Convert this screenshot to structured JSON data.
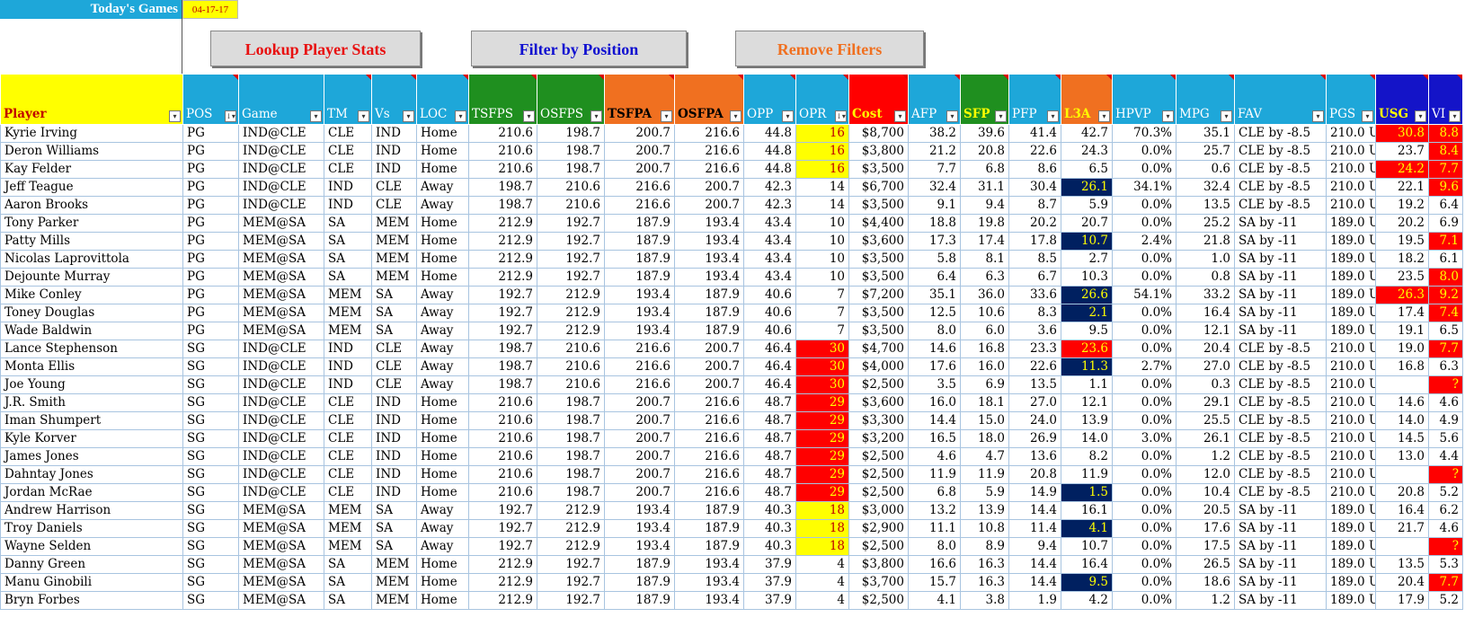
{
  "header": {
    "title": "Today's Games",
    "date": "04-17-17"
  },
  "buttons": {
    "lookup": "Lookup Player Stats",
    "filter": "Filter by Position",
    "remove": "Remove Filters"
  },
  "colors": {
    "title_bg": "#1ea7d9",
    "header_blue": "#1ea7d9",
    "green": "#1f8f1f",
    "orange": "#f07020",
    "red": "#ff0000",
    "navy": "#002060",
    "yellow": "#ffff00"
  },
  "columns": [
    {
      "key": "player",
      "label": "Player",
      "bg": "#ffff00",
      "fg": "#c00000",
      "width": 203,
      "align": "p"
    },
    {
      "key": "pos",
      "label": "POS",
      "bg": "#1ea7d9",
      "fg": "#ffffff",
      "width": 62,
      "align": "p",
      "sorted": true
    },
    {
      "key": "game",
      "label": "Game",
      "bg": "#1ea7d9",
      "fg": "#ffffff",
      "width": 95,
      "align": "p"
    },
    {
      "key": "tm",
      "label": "TM",
      "bg": "#1ea7d9",
      "fg": "#ffffff",
      "width": 53,
      "align": "p"
    },
    {
      "key": "vs",
      "label": "Vs",
      "bg": "#1ea7d9",
      "fg": "#ffffff",
      "width": 50,
      "align": "p"
    },
    {
      "key": "loc",
      "label": "LOC",
      "bg": "#1ea7d9",
      "fg": "#ffffff",
      "width": 58,
      "align": "p"
    },
    {
      "key": "tsfps",
      "label": "TSFPS",
      "bg": "#1f8f1f",
      "fg": "#ffffff",
      "width": 76,
      "align": "n"
    },
    {
      "key": "osfps",
      "label": "OSFPS",
      "bg": "#1f8f1f",
      "fg": "#ffffff",
      "width": 75,
      "align": "n"
    },
    {
      "key": "tsfpa",
      "label": "TSFPA",
      "bg": "#f07020",
      "fg": "#000000",
      "width": 78,
      "align": "n"
    },
    {
      "key": "osfpa",
      "label": "OSFPA",
      "bg": "#f07020",
      "fg": "#000000",
      "width": 77,
      "align": "n"
    },
    {
      "key": "opp",
      "label": "OPP",
      "bg": "#1ea7d9",
      "fg": "#ffffff",
      "width": 58,
      "align": "n"
    },
    {
      "key": "opr",
      "label": "OPR",
      "bg": "#1ea7d9",
      "fg": "#ffffff",
      "width": 59,
      "align": "n",
      "sorted": true
    },
    {
      "key": "cost",
      "label": "Cost",
      "bg": "#ff0000",
      "fg": "#ffff00",
      "width": 66,
      "align": "n"
    },
    {
      "key": "afp",
      "label": "AFP",
      "bg": "#1ea7d9",
      "fg": "#ffffff",
      "width": 58,
      "align": "n"
    },
    {
      "key": "sfp",
      "label": "SFP",
      "bg": "#1f8f1f",
      "fg": "#ffff00",
      "width": 54,
      "align": "n"
    },
    {
      "key": "pfp",
      "label": "PFP",
      "bg": "#1ea7d9",
      "fg": "#ffffff",
      "width": 58,
      "align": "n"
    },
    {
      "key": "l3a",
      "label": "L3A",
      "bg": "#f07020",
      "fg": "#ffff00",
      "width": 57,
      "align": "n"
    },
    {
      "key": "hpvp",
      "label": "HPVP",
      "bg": "#1ea7d9",
      "fg": "#ffffff",
      "width": 71,
      "align": "n"
    },
    {
      "key": "mpg",
      "label": "MPG",
      "bg": "#1ea7d9",
      "fg": "#ffffff",
      "width": 65,
      "align": "n"
    },
    {
      "key": "fav",
      "label": "FAV",
      "bg": "#1ea7d9",
      "fg": "#ffffff",
      "width": 102,
      "align": "p"
    },
    {
      "key": "pgs",
      "label": "PGS",
      "bg": "#1ea7d9",
      "fg": "#ffffff",
      "width": 55,
      "align": "p"
    },
    {
      "key": "usg",
      "label": "USG",
      "bg": "#1414c8",
      "fg": "#ffff00",
      "width": 59,
      "align": "n"
    },
    {
      "key": "vi",
      "label": "VI",
      "bg": "#1414c8",
      "fg": "#ffffff",
      "width": 38,
      "align": "n"
    }
  ],
  "rows": [
    [
      "Kyrie Irving",
      "PG",
      "IND@CLE",
      "CLE",
      "IND",
      "Home",
      "210.6",
      "198.7",
      "200.7",
      "216.6",
      "44.8",
      "16",
      "$8,700",
      "38.2",
      "39.6",
      "41.4",
      "42.7",
      "70.3%",
      "35.1",
      "CLE by -8.5",
      "210.0 U",
      "30.8",
      "8.8"
    ],
    [
      "Deron Williams",
      "PG",
      "IND@CLE",
      "CLE",
      "IND",
      "Home",
      "210.6",
      "198.7",
      "200.7",
      "216.6",
      "44.8",
      "16",
      "$3,800",
      "21.2",
      "20.8",
      "22.6",
      "24.3",
      "0.0%",
      "25.7",
      "CLE by -8.5",
      "210.0 U",
      "23.7",
      "8.4"
    ],
    [
      "Kay Felder",
      "PG",
      "IND@CLE",
      "CLE",
      "IND",
      "Home",
      "210.6",
      "198.7",
      "200.7",
      "216.6",
      "44.8",
      "16",
      "$3,500",
      "7.7",
      "6.8",
      "8.6",
      "6.5",
      "0.0%",
      "0.6",
      "CLE by -8.5",
      "210.0 U",
      "24.2",
      "7.7"
    ],
    [
      "Jeff Teague",
      "PG",
      "IND@CLE",
      "IND",
      "CLE",
      "Away",
      "198.7",
      "210.6",
      "216.6",
      "200.7",
      "42.3",
      "14",
      "$6,700",
      "32.4",
      "31.1",
      "30.4",
      "26.1",
      "34.1%",
      "32.4",
      "CLE by -8.5",
      "210.0 U",
      "22.1",
      "9.6"
    ],
    [
      "Aaron Brooks",
      "PG",
      "IND@CLE",
      "IND",
      "CLE",
      "Away",
      "198.7",
      "210.6",
      "216.6",
      "200.7",
      "42.3",
      "14",
      "$3,500",
      "9.1",
      "9.4",
      "8.7",
      "5.9",
      "0.0%",
      "13.5",
      "CLE by -8.5",
      "210.0 U",
      "19.2",
      "6.4"
    ],
    [
      "Tony Parker",
      "PG",
      "MEM@SA",
      "SA",
      "MEM",
      "Home",
      "212.9",
      "192.7",
      "187.9",
      "193.4",
      "43.4",
      "10",
      "$4,400",
      "18.8",
      "19.8",
      "20.2",
      "20.7",
      "0.0%",
      "25.2",
      "SA by -11",
      "189.0 U",
      "20.2",
      "6.9"
    ],
    [
      "Patty Mills",
      "PG",
      "MEM@SA",
      "SA",
      "MEM",
      "Home",
      "212.9",
      "192.7",
      "187.9",
      "193.4",
      "43.4",
      "10",
      "$3,600",
      "17.3",
      "17.4",
      "17.8",
      "10.7",
      "2.4%",
      "21.8",
      "SA by -11",
      "189.0 U",
      "19.5",
      "7.1"
    ],
    [
      "Nicolas Laprovittola",
      "PG",
      "MEM@SA",
      "SA",
      "MEM",
      "Home",
      "212.9",
      "192.7",
      "187.9",
      "193.4",
      "43.4",
      "10",
      "$3,500",
      "5.8",
      "8.1",
      "8.5",
      "2.7",
      "0.0%",
      "1.0",
      "SA by -11",
      "189.0 U",
      "18.2",
      "6.1"
    ],
    [
      "Dejounte Murray",
      "PG",
      "MEM@SA",
      "SA",
      "MEM",
      "Home",
      "212.9",
      "192.7",
      "187.9",
      "193.4",
      "43.4",
      "10",
      "$3,500",
      "6.4",
      "6.3",
      "6.7",
      "10.3",
      "0.0%",
      "0.8",
      "SA by -11",
      "189.0 U",
      "23.5",
      "8.0"
    ],
    [
      "Mike Conley",
      "PG",
      "MEM@SA",
      "MEM",
      "SA",
      "Away",
      "192.7",
      "212.9",
      "193.4",
      "187.9",
      "40.6",
      "7",
      "$7,200",
      "35.1",
      "36.0",
      "33.6",
      "26.6",
      "54.1%",
      "33.2",
      "SA by -11",
      "189.0 U",
      "26.3",
      "9.2"
    ],
    [
      "Toney Douglas",
      "PG",
      "MEM@SA",
      "MEM",
      "SA",
      "Away",
      "192.7",
      "212.9",
      "193.4",
      "187.9",
      "40.6",
      "7",
      "$3,500",
      "12.5",
      "10.6",
      "8.3",
      "2.1",
      "0.0%",
      "16.4",
      "SA by -11",
      "189.0 U",
      "17.4",
      "7.4"
    ],
    [
      "Wade Baldwin",
      "PG",
      "MEM@SA",
      "MEM",
      "SA",
      "Away",
      "192.7",
      "212.9",
      "193.4",
      "187.9",
      "40.6",
      "7",
      "$3,500",
      "8.0",
      "6.0",
      "3.6",
      "9.5",
      "0.0%",
      "12.1",
      "SA by -11",
      "189.0 U",
      "19.1",
      "6.5"
    ],
    [
      "Lance Stephenson",
      "SG",
      "IND@CLE",
      "IND",
      "CLE",
      "Away",
      "198.7",
      "210.6",
      "216.6",
      "200.7",
      "46.4",
      "30",
      "$4,700",
      "14.6",
      "16.8",
      "23.3",
      "23.6",
      "0.0%",
      "20.4",
      "CLE by -8.5",
      "210.0 U",
      "19.0",
      "7.7"
    ],
    [
      "Monta Ellis",
      "SG",
      "IND@CLE",
      "IND",
      "CLE",
      "Away",
      "198.7",
      "210.6",
      "216.6",
      "200.7",
      "46.4",
      "30",
      "$4,000",
      "17.6",
      "16.0",
      "22.6",
      "11.3",
      "2.7%",
      "27.0",
      "CLE by -8.5",
      "210.0 U",
      "16.8",
      "6.3"
    ],
    [
      "Joe Young",
      "SG",
      "IND@CLE",
      "IND",
      "CLE",
      "Away",
      "198.7",
      "210.6",
      "216.6",
      "200.7",
      "46.4",
      "30",
      "$2,500",
      "3.5",
      "6.9",
      "13.5",
      "1.1",
      "0.0%",
      "0.3",
      "CLE by -8.5",
      "210.0 U ?",
      "",
      "?"
    ],
    [
      "J.R. Smith",
      "SG",
      "IND@CLE",
      "CLE",
      "IND",
      "Home",
      "210.6",
      "198.7",
      "200.7",
      "216.6",
      "48.7",
      "29",
      "$3,600",
      "16.0",
      "18.1",
      "27.0",
      "12.1",
      "0.0%",
      "29.1",
      "CLE by -8.5",
      "210.0 U",
      "14.6",
      "4.6"
    ],
    [
      "Iman Shumpert",
      "SG",
      "IND@CLE",
      "CLE",
      "IND",
      "Home",
      "210.6",
      "198.7",
      "200.7",
      "216.6",
      "48.7",
      "29",
      "$3,300",
      "14.4",
      "15.0",
      "24.0",
      "13.9",
      "0.0%",
      "25.5",
      "CLE by -8.5",
      "210.0 U",
      "14.0",
      "4.9"
    ],
    [
      "Kyle Korver",
      "SG",
      "IND@CLE",
      "CLE",
      "IND",
      "Home",
      "210.6",
      "198.7",
      "200.7",
      "216.6",
      "48.7",
      "29",
      "$3,200",
      "16.5",
      "18.0",
      "26.9",
      "14.0",
      "3.0%",
      "26.1",
      "CLE by -8.5",
      "210.0 U",
      "14.5",
      "5.6"
    ],
    [
      "James Jones",
      "SG",
      "IND@CLE",
      "CLE",
      "IND",
      "Home",
      "210.6",
      "198.7",
      "200.7",
      "216.6",
      "48.7",
      "29",
      "$2,500",
      "4.6",
      "4.7",
      "13.6",
      "8.2",
      "0.0%",
      "1.2",
      "CLE by -8.5",
      "210.0 U",
      "13.0",
      "4.4"
    ],
    [
      "Dahntay Jones",
      "SG",
      "IND@CLE",
      "CLE",
      "IND",
      "Home",
      "210.6",
      "198.7",
      "200.7",
      "216.6",
      "48.7",
      "29",
      "$2,500",
      "11.9",
      "11.9",
      "20.8",
      "11.9",
      "0.0%",
      "12.0",
      "CLE by -8.5",
      "210.0 U ?",
      "",
      "?"
    ],
    [
      "Jordan McRae",
      "SG",
      "IND@CLE",
      "CLE",
      "IND",
      "Home",
      "210.6",
      "198.7",
      "200.7",
      "216.6",
      "48.7",
      "29",
      "$2,500",
      "6.8",
      "5.9",
      "14.9",
      "1.5",
      "0.0%",
      "10.4",
      "CLE by -8.5",
      "210.0 U",
      "20.8",
      "5.2"
    ],
    [
      "Andrew Harrison",
      "SG",
      "MEM@SA",
      "MEM",
      "SA",
      "Away",
      "192.7",
      "212.9",
      "193.4",
      "187.9",
      "40.3",
      "18",
      "$3,000",
      "13.2",
      "13.9",
      "14.4",
      "16.1",
      "0.0%",
      "20.5",
      "SA by -11",
      "189.0 U",
      "16.4",
      "6.2"
    ],
    [
      "Troy Daniels",
      "SG",
      "MEM@SA",
      "MEM",
      "SA",
      "Away",
      "192.7",
      "212.9",
      "193.4",
      "187.9",
      "40.3",
      "18",
      "$2,900",
      "11.1",
      "10.8",
      "11.4",
      "4.1",
      "0.0%",
      "17.6",
      "SA by -11",
      "189.0 U",
      "21.7",
      "4.6"
    ],
    [
      "Wayne Selden",
      "SG",
      "MEM@SA",
      "MEM",
      "SA",
      "Away",
      "192.7",
      "212.9",
      "193.4",
      "187.9",
      "40.3",
      "18",
      "$2,500",
      "8.0",
      "8.9",
      "9.4",
      "10.7",
      "0.0%",
      "17.5",
      "SA by -11",
      "189.0 U ?",
      "",
      "?"
    ],
    [
      "Danny Green",
      "SG",
      "MEM@SA",
      "SA",
      "MEM",
      "Home",
      "212.9",
      "192.7",
      "187.9",
      "193.4",
      "37.9",
      "4",
      "$3,800",
      "16.6",
      "16.3",
      "14.4",
      "16.4",
      "0.0%",
      "26.5",
      "SA by -11",
      "189.0 U",
      "13.5",
      "5.3"
    ],
    [
      "Manu Ginobili",
      "SG",
      "MEM@SA",
      "SA",
      "MEM",
      "Home",
      "212.9",
      "192.7",
      "187.9",
      "193.4",
      "37.9",
      "4",
      "$3,700",
      "15.7",
      "16.3",
      "14.4",
      "9.5",
      "0.0%",
      "18.6",
      "SA by -11",
      "189.0 U",
      "20.4",
      "7.7"
    ],
    [
      "Bryn Forbes",
      "SG",
      "MEM@SA",
      "SA",
      "MEM",
      "Home",
      "212.9",
      "192.7",
      "187.9",
      "193.4",
      "37.9",
      "4",
      "$2,500",
      "4.1",
      "3.8",
      "1.9",
      "4.2",
      "0.0%",
      "1.2",
      "SA by -11",
      "189.0 U",
      "17.9",
      "5.2"
    ]
  ],
  "highlights": {
    "opr": {
      "16": "yellow",
      "18": "yellow",
      "30": "red",
      "29": "red"
    },
    "l3a_navy": [
      3,
      6,
      9,
      10,
      13,
      20,
      22,
      25
    ],
    "l3a_red": [
      12
    ],
    "usg_red": [
      0,
      2,
      9
    ],
    "vi_red": [
      0,
      1,
      2,
      3,
      6,
      8,
      9,
      10,
      12,
      14,
      19,
      23,
      25
    ]
  }
}
